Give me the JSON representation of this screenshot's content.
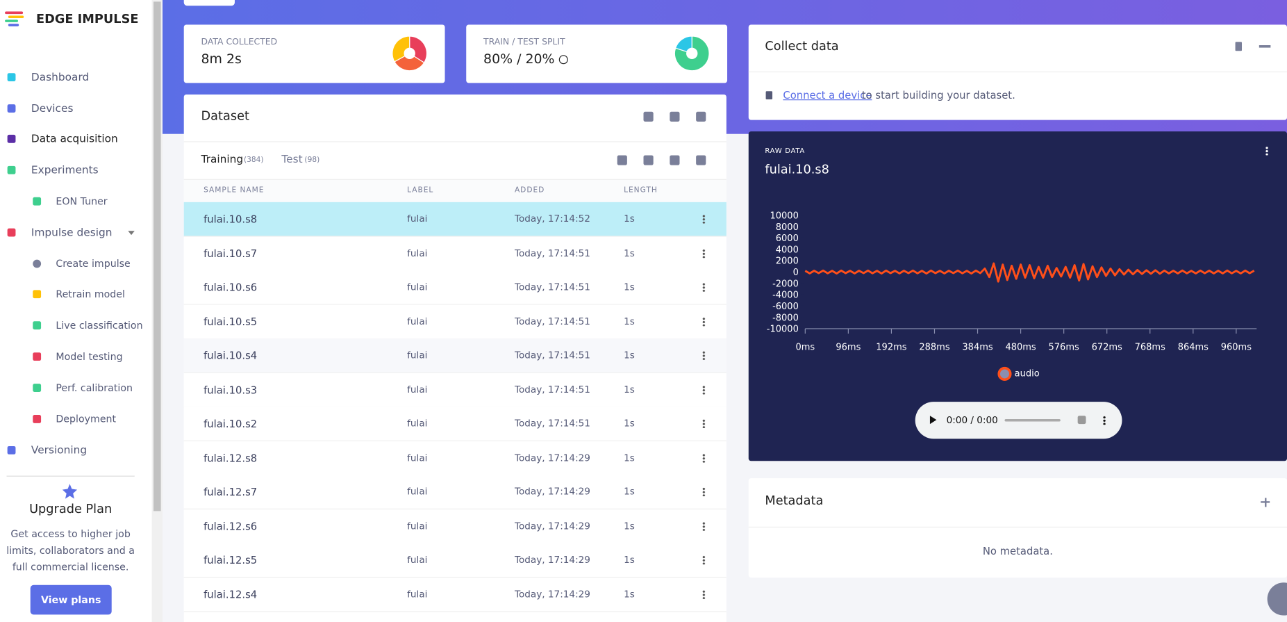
{
  "sidebar": {
    "brand": "EDGE IMPULSE",
    "nav": [
      {
        "label": "Dashboard"
      },
      {
        "label": "Devices"
      },
      {
        "label": "Data acquisition"
      },
      {
        "label": "Experiments"
      },
      {
        "label": "EON Tuner"
      },
      {
        "label": "Impulse design"
      },
      {
        "label": "Create impulse"
      },
      {
        "label": "Retrain model"
      },
      {
        "label": "Live classification"
      },
      {
        "label": "Model testing"
      },
      {
        "label": "Perf. calibration"
      },
      {
        "label": "Deployment"
      },
      {
        "label": "Versioning"
      }
    ],
    "upgrade": {
      "title": "Upgrade Plan",
      "text": "Get access to higher job limits, collaborators and a full commercial license.",
      "button": "View plans"
    }
  },
  "stats": [
    {
      "title": "DATA COLLECTED",
      "value": "8m 2s",
      "pie": [
        34,
        33,
        33
      ],
      "colors": [
        "#e83e5a",
        "#f4623a",
        "#ffc107"
      ]
    },
    {
      "title": "TRAIN / TEST SPLIT",
      "value": "80% / 20%",
      "pie": [
        80,
        20
      ],
      "colors": [
        "#3ecf8e",
        "#2bc6e6"
      ]
    }
  ],
  "dataset": {
    "title": "Dataset",
    "tabs": [
      {
        "label": "Training",
        "count": "(384)"
      },
      {
        "label": "Test",
        "count": "(98)"
      }
    ],
    "columns": [
      "SAMPLE NAME",
      "LABEL",
      "ADDED",
      "LENGTH"
    ],
    "rows": [
      [
        "fulai.10.s8",
        "fulai",
        "Today, 17:14:52",
        "1s"
      ],
      [
        "fulai.10.s7",
        "fulai",
        "Today, 17:14:51",
        "1s"
      ],
      [
        "fulai.10.s6",
        "fulai",
        "Today, 17:14:51",
        "1s"
      ],
      [
        "fulai.10.s5",
        "fulai",
        "Today, 17:14:51",
        "1s"
      ],
      [
        "fulai.10.s4",
        "fulai",
        "Today, 17:14:51",
        "1s"
      ],
      [
        "fulai.10.s3",
        "fulai",
        "Today, 17:14:51",
        "1s"
      ],
      [
        "fulai.10.s2",
        "fulai",
        "Today, 17:14:51",
        "1s"
      ],
      [
        "fulai.12.s8",
        "fulai",
        "Today, 17:14:29",
        "1s"
      ],
      [
        "fulai.12.s7",
        "fulai",
        "Today, 17:14:29",
        "1s"
      ],
      [
        "fulai.12.s6",
        "fulai",
        "Today, 17:14:29",
        "1s"
      ],
      [
        "fulai.12.s5",
        "fulai",
        "Today, 17:14:29",
        "1s"
      ],
      [
        "fulai.12.s4",
        "fulai",
        "Today, 17:14:29",
        "1s"
      ]
    ]
  },
  "collect": {
    "title": "Collect data",
    "link": "Connect a device",
    "text": "to start building your dataset."
  },
  "raw_data": {
    "label": "RAW DATA",
    "title": "fulai.10.s8",
    "audio_time": "0:00 / 0:00",
    "chart": {
      "type": "line",
      "ylim": [
        -10000,
        10000
      ],
      "yticks": [
        10000,
        8000,
        6000,
        4000,
        2000,
        0,
        -2000,
        -4000,
        -6000,
        -8000,
        -10000
      ],
      "xlim": [
        0,
        1000
      ],
      "xticks": [
        {
          "value": 0,
          "label": "0ms"
        },
        {
          "value": 96,
          "label": "96ms"
        },
        {
          "value": 192,
          "label": "192ms"
        },
        {
          "value": 288,
          "label": "288ms"
        },
        {
          "value": 384,
          "label": "384ms"
        },
        {
          "value": 480,
          "label": "480ms"
        },
        {
          "value": 576,
          "label": "576ms"
        },
        {
          "value": 672,
          "label": "672ms"
        },
        {
          "value": 768,
          "label": "768ms"
        },
        {
          "value": 864,
          "label": "864ms"
        },
        {
          "value": 960,
          "label": "960ms"
        }
      ],
      "series": [
        {
          "name": "audio",
          "color": "#ff4f1a",
          "x": [
            0,
            10,
            20,
            30,
            40,
            50,
            60,
            70,
            80,
            90,
            100,
            110,
            120,
            130,
            140,
            150,
            160,
            170,
            180,
            190,
            200,
            210,
            220,
            230,
            240,
            250,
            260,
            270,
            280,
            290,
            300,
            310,
            320,
            330,
            340,
            350,
            360,
            370,
            380,
            390,
            400,
            410,
            420,
            430,
            440,
            450,
            460,
            470,
            480,
            490,
            500,
            510,
            520,
            530,
            540,
            550,
            560,
            570,
            580,
            590,
            600,
            610,
            620,
            630,
            640,
            650,
            660,
            670,
            680,
            690,
            700,
            710,
            720,
            730,
            740,
            750,
            760,
            770,
            780,
            790,
            800,
            810,
            820,
            830,
            840,
            850,
            860,
            870,
            880,
            890,
            900,
            910,
            920,
            930,
            940,
            950,
            960,
            970,
            980,
            990,
            1000
          ],
          "values": [
            200,
            -250,
            220,
            -200,
            250,
            -230,
            200,
            -260,
            240,
            -200,
            200,
            -250,
            220,
            -200,
            250,
            -230,
            200,
            -260,
            240,
            -200,
            200,
            -250,
            220,
            -200,
            250,
            -230,
            200,
            -260,
            240,
            -200,
            200,
            -250,
            220,
            -200,
            250,
            -230,
            200,
            -260,
            240,
            -200,
            600,
            -900,
            1500,
            -1700,
            1300,
            -1400,
            1100,
            -1200,
            1300,
            -1000,
            1200,
            -1100,
            900,
            -1000,
            1100,
            -900,
            700,
            -800,
            900,
            -1000,
            1200,
            -1500,
            1400,
            -1300,
            1000,
            -900,
            800,
            -700,
            600,
            -600,
            500,
            -450,
            400,
            -400,
            350,
            -350,
            300,
            -300,
            300,
            -300,
            250,
            -250,
            220,
            -240,
            260,
            -230,
            210,
            -250,
            240,
            -220,
            230,
            -250,
            220,
            -240,
            260,
            -230,
            210,
            -250,
            240,
            -220,
            230
          ]
        }
      ]
    }
  },
  "metadata": {
    "title": "Metadata",
    "empty": "No metadata."
  }
}
